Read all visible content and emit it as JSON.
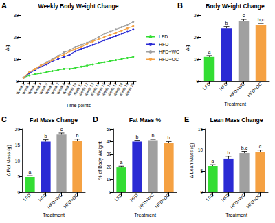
{
  "chart_data": [
    {
      "type": "line",
      "panel_label": "A",
      "title": "Weekly Body Weight Change",
      "x_label": "Time points",
      "y_label": "Δg",
      "categories": [
        "Week 1",
        "Week 2",
        "Week 3",
        "Week 4",
        "Week 5",
        "Week 6",
        "Week 7",
        "Week 8",
        "Week 9",
        "Week 10",
        "Week 11",
        "Week 12",
        "Week 13",
        "Week 14",
        "Week 15",
        "Week 16",
        "Week 17",
        "Week 18",
        "Week 19",
        "Week 20"
      ],
      "series": [
        {
          "name": "LFD",
          "color": "#33dd33",
          "values": [
            1.5,
            2.5,
            3,
            3.5,
            4,
            4.5,
            5,
            5.5,
            5.5,
            6,
            6.5,
            7,
            7.5,
            8,
            8.5,
            9,
            9.5,
            10,
            10.5,
            11
          ]
        },
        {
          "name": "HFD",
          "color": "#2a2ad4",
          "values": [
            1.5,
            3.5,
            5,
            6.5,
            7.5,
            9,
            10,
            11,
            12,
            13.5,
            14.5,
            15.5,
            16.5,
            17.5,
            18.5,
            19.5,
            20.5,
            21.5,
            22.5,
            23.5
          ]
        },
        {
          "name": "HFD+WC",
          "color": "#a0a0a0",
          "values": [
            1.5,
            4,
            5.5,
            7,
            8.5,
            10,
            11.5,
            13,
            14,
            15.5,
            16.5,
            17.5,
            18.5,
            20,
            21.5,
            22.5,
            23.5,
            24.5,
            25.5,
            27
          ]
        },
        {
          "name": "HFD+OC",
          "color": "#f5a142",
          "values": [
            1.5,
            4,
            5.5,
            7,
            8,
            9.5,
            11,
            12,
            13.5,
            14.5,
            15.5,
            17,
            18,
            19,
            20,
            21,
            22,
            23,
            24,
            25
          ]
        }
      ],
      "marker": "circle",
      "legend": "right",
      "grid": false,
      "ylim": [
        0,
        30
      ],
      "yticks": [
        0,
        10,
        20,
        30
      ]
    },
    {
      "type": "bar",
      "panel_label": "B",
      "title": "Body Weight Change",
      "x_label": "Treatment",
      "y_label": "Δg",
      "categories": [
        "LFD",
        "HFD",
        "HFD+WC",
        "HFD+OC"
      ],
      "values": [
        11,
        24,
        27.5,
        25.5
      ],
      "errors": [
        0.6,
        0.8,
        0.6,
        0.7
      ],
      "annotations": [
        "a",
        "b",
        "c",
        "b,c"
      ],
      "colors": [
        "#33dd33",
        "#2a2ad4",
        "#a0a0a0",
        "#f5a142"
      ],
      "grid": false,
      "ylim": [
        0,
        30
      ],
      "yticks": [
        0,
        10,
        20,
        30
      ]
    },
    {
      "type": "bar",
      "panel_label": "C",
      "title": "Fat Mass Change",
      "x_label": "Treatment",
      "y_label": "Δ Fat Mass (g)",
      "categories": [
        "LFD",
        "HFD",
        "HFD+WC",
        "HFD+OC"
      ],
      "values": [
        4.8,
        16,
        18.2,
        16.2
      ],
      "errors": [
        0.4,
        0.6,
        0.5,
        0.6
      ],
      "annotations": [
        "a",
        "b",
        "c",
        "b"
      ],
      "colors": [
        "#33dd33",
        "#2a2ad4",
        "#a0a0a0",
        "#f5a142"
      ],
      "grid": false,
      "ylim": [
        0,
        20
      ],
      "yticks": [
        0,
        5,
        10,
        15,
        20
      ]
    },
    {
      "type": "bar",
      "panel_label": "D",
      "title": "Fat Mass %",
      "x_label": "Treatment",
      "y_label": "% of Body Weight",
      "categories": [
        "LFD",
        "HFD",
        "HFD+WC",
        "HFD+OC"
      ],
      "values": [
        19.5,
        40,
        41,
        39
      ],
      "errors": [
        1,
        1,
        0.8,
        1
      ],
      "annotations": [
        "a",
        "b",
        "b",
        "b"
      ],
      "colors": [
        "#33dd33",
        "#2a2ad4",
        "#a0a0a0",
        "#f5a142"
      ],
      "grid": false,
      "ylim": [
        0,
        50
      ],
      "yticks": [
        0,
        10,
        20,
        30,
        40,
        50
      ]
    },
    {
      "type": "bar",
      "panel_label": "E",
      "title": "Lean Mass Change",
      "x_label": "Treatment",
      "y_label": "Δ Lean Mass (g)",
      "categories": [
        "LFD",
        "HFD",
        "HFD+WC",
        "HFD+OC"
      ],
      "values": [
        6.2,
        8,
        9.3,
        9.6
      ],
      "errors": [
        0.3,
        0.5,
        0.4,
        0.4
      ],
      "annotations": [
        "a",
        "b",
        "b,c",
        "c"
      ],
      "colors": [
        "#33dd33",
        "#2a2ad4",
        "#a0a0a0",
        "#f5a142"
      ],
      "grid": false,
      "ylim": [
        0,
        15
      ],
      "yticks": [
        0,
        5,
        10,
        15
      ]
    }
  ]
}
